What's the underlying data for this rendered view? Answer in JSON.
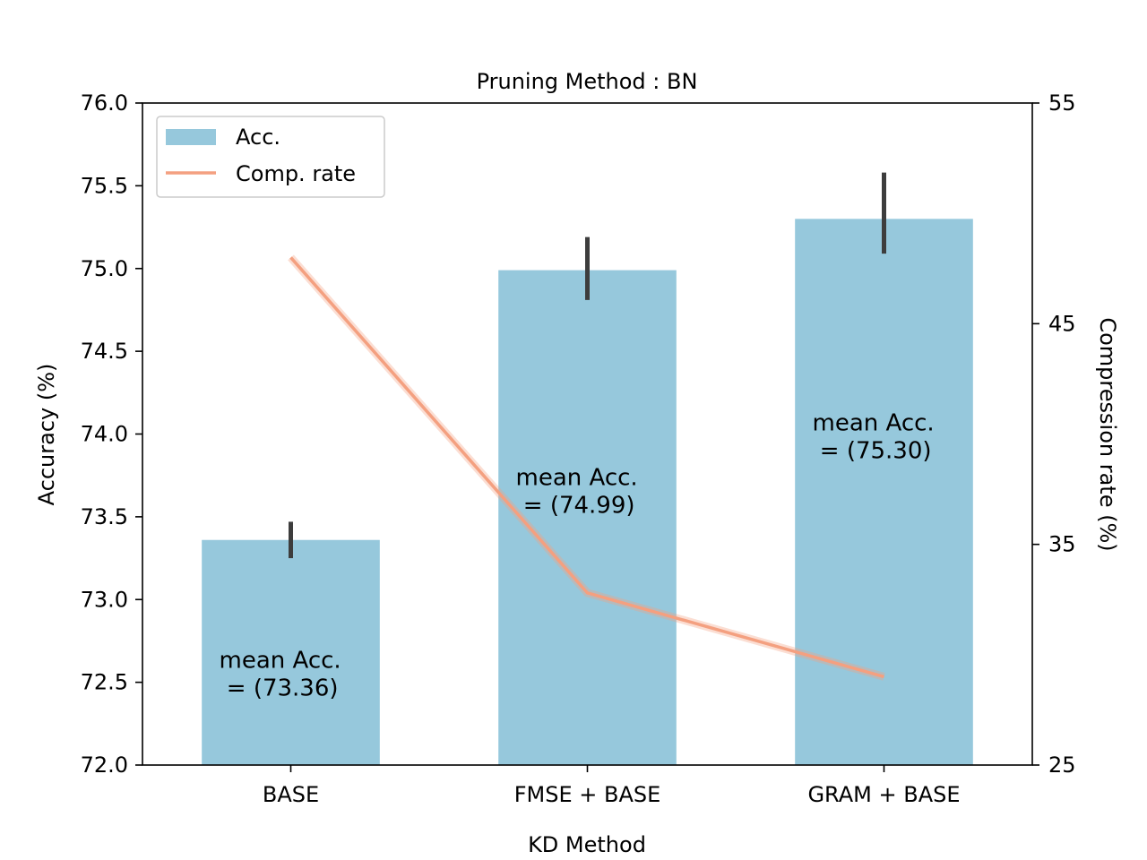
{
  "chart_data": {
    "type": "bar",
    "title": "Pruning Method : BN",
    "xlabel": "KD Method",
    "ylabel": "Accuracy (%)",
    "ylabel_right": "Compression rate (%)",
    "categories": [
      "BASE",
      "FMSE + BASE",
      "GRAM + BASE"
    ],
    "ylim": [
      72.0,
      76.0
    ],
    "ylim_right": [
      25,
      55
    ],
    "yticks": [
      "72.0",
      "72.5",
      "73.0",
      "73.5",
      "74.0",
      "74.5",
      "75.0",
      "75.5",
      "76.0"
    ],
    "yticks_right": [
      "25",
      "35",
      "45",
      "55"
    ],
    "series": [
      {
        "name": "Acc.",
        "kind": "bar",
        "axis": "left",
        "color": "#96c8dc",
        "values": [
          73.36,
          74.99,
          75.3
        ],
        "error_low": [
          73.25,
          74.81,
          75.09
        ],
        "error_high": [
          73.47,
          75.19,
          75.58
        ]
      },
      {
        "name": "Comp. rate",
        "kind": "line",
        "axis": "right",
        "color": "#f4a080",
        "values": [
          48.0,
          32.8,
          29.0
        ]
      }
    ],
    "annotations": [
      {
        "line1": "mean Acc.",
        "line2": "  = (73.36)"
      },
      {
        "line1": "mean Acc.",
        "line2": "  = (74.99)"
      },
      {
        "line1": "mean Acc.",
        "line2": "  = (75.30)"
      }
    ],
    "legend_position": "top-left",
    "grid": false
  }
}
